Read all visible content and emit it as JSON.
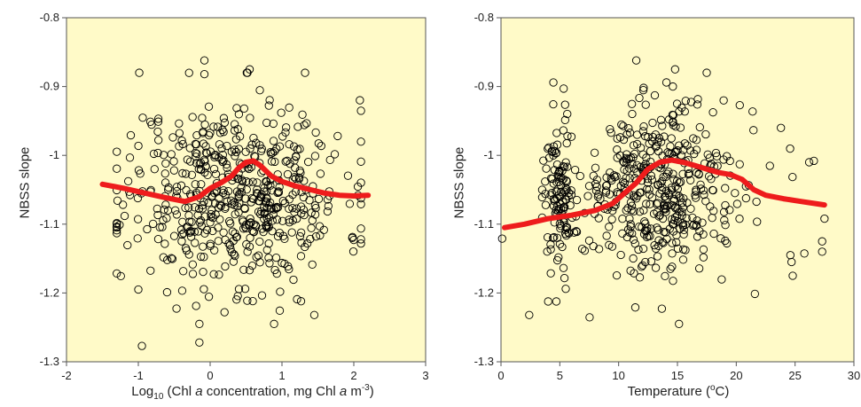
{
  "figure": {
    "left_panel_xlabel_prefix": "Log",
    "left_panel_xlabel_sub": "10",
    "left_panel_xlabel_mid1": " (Chl ",
    "left_panel_xlabel_italic1": "a",
    "left_panel_xlabel_mid2": " concentration,  mg Chl ",
    "left_panel_xlabel_italic2": "a",
    "left_panel_xlabel_mid3": " m",
    "left_panel_xlabel_sup": "-3",
    "left_panel_xlabel_end": ")",
    "right_panel_xlabel_main": "Temperature (",
    "right_panel_xlabel_sup": "o",
    "right_panel_xlabel_end": "C)"
  },
  "colors": {
    "background": "#fffac8",
    "trend": "#ee1c1c",
    "points": "#000000"
  },
  "chart_data": [
    {
      "type": "scatter",
      "ylabel": "NBSS slope",
      "xlim": [
        -2,
        3
      ],
      "ylim": [
        -1.3,
        -0.8
      ],
      "xticks": [
        "-2",
        "-1",
        "0",
        "1",
        "2",
        "3"
      ],
      "yticks": [
        "-0.8",
        "-0.9",
        "-1",
        "-1.1",
        "-1.2",
        "-1.3"
      ],
      "grid": false,
      "trend_line": {
        "x": [
          -1.5,
          -1.2,
          -0.9,
          -0.6,
          -0.35,
          -0.15,
          0.0,
          0.15,
          0.3,
          0.4,
          0.5,
          0.6,
          0.7,
          0.85,
          1.0,
          1.2,
          1.4,
          1.6,
          1.8,
          2.0,
          2.2
        ],
        "y": [
          -1.042,
          -1.048,
          -1.055,
          -1.062,
          -1.067,
          -1.06,
          -1.048,
          -1.04,
          -1.03,
          -1.018,
          -1.01,
          -1.008,
          -1.015,
          -1.03,
          -1.038,
          -1.045,
          -1.05,
          -1.055,
          -1.058,
          -1.059,
          -1.058
        ]
      },
      "outliers": {
        "x": [
          -0.08,
          -0.95,
          -0.15,
          0.55,
          -0.08,
          -1.0,
          0.2,
          1.45
        ],
        "y": [
          -0.862,
          -1.277,
          -1.272,
          -0.875,
          -0.882,
          -1.195,
          -1.228,
          -1.232
        ]
      },
      "scatter_params": {
        "n": 560,
        "seed": 11,
        "x_mean": 0.35,
        "x_sd": 0.75,
        "x_min": -1.3,
        "x_max": 2.1,
        "y_mean": -1.055,
        "y_sd": 0.068
      }
    },
    {
      "type": "scatter",
      "ylabel": "NBSS slope",
      "xlim": [
        0,
        30
      ],
      "ylim": [
        -1.3,
        -0.8
      ],
      "xticks": [
        "0",
        "5",
        "10",
        "15",
        "20",
        "25",
        "30"
      ],
      "yticks": [
        "-0.8",
        "-0.9",
        "-1",
        "-1.1",
        "-1.2",
        "-1.3"
      ],
      "grid": false,
      "trend_line": {
        "x": [
          0.3,
          2,
          4,
          6,
          8,
          9.5,
          10.5,
          11.5,
          12.5,
          13.5,
          14.5,
          15.5,
          16.5,
          17.5,
          18.5,
          19.5,
          20.5,
          21.5,
          22.5,
          24,
          25.5,
          27.5
        ],
        "y": [
          -1.105,
          -1.1,
          -1.092,
          -1.087,
          -1.08,
          -1.07,
          -1.055,
          -1.04,
          -1.02,
          -1.01,
          -1.007,
          -1.01,
          -1.015,
          -1.02,
          -1.025,
          -1.028,
          -1.035,
          -1.05,
          -1.058,
          -1.063,
          -1.067,
          -1.072
        ]
      },
      "outliers": {
        "x": [
          11.5,
          14.8,
          2.4,
          0.1,
          27.3,
          27.3,
          27.5,
          24.6,
          24.7,
          24.8,
          26.2,
          26.6
        ],
        "y": [
          -0.862,
          -0.875,
          -1.232,
          -1.121,
          -1.125,
          -1.14,
          -1.092,
          -1.145,
          -1.155,
          -1.175,
          -1.01,
          -1.008
        ]
      },
      "scatter_params": {
        "n": 560,
        "seed": 23,
        "clusters": [
          {
            "x_mean": 5.0,
            "x_sd": 0.6,
            "weight": 0.18
          },
          {
            "x_mean": 13.5,
            "x_sd": 3.6,
            "weight": 0.82
          }
        ],
        "x_min": 3.5,
        "x_max": 26,
        "y_mean": -1.055,
        "y_sd": 0.062
      }
    }
  ]
}
